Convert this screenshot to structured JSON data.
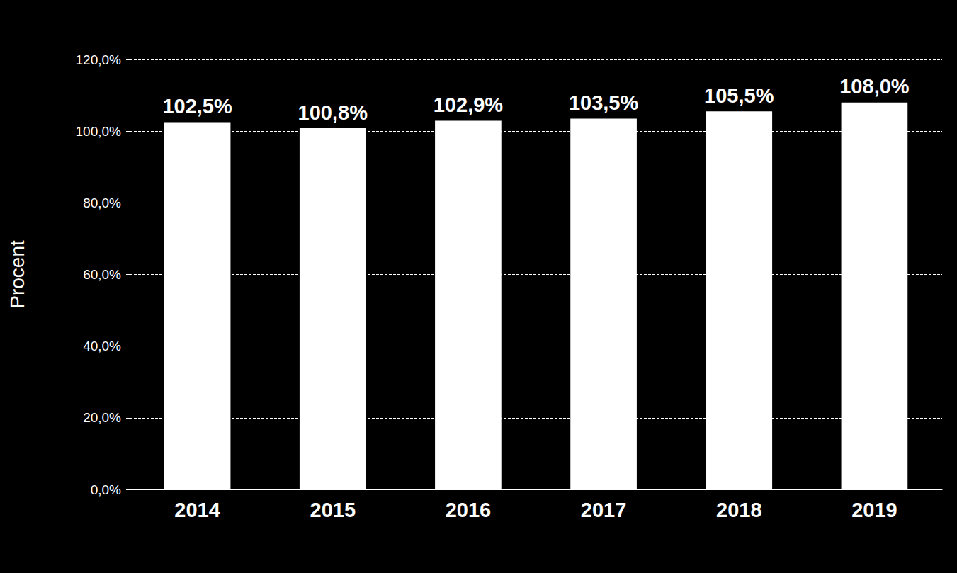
{
  "chart_data": {
    "type": "bar",
    "y_label": "Procent",
    "categories": [
      "2014",
      "2015",
      "2016",
      "2017",
      "2018",
      "2019"
    ],
    "values": [
      102.5,
      100.8,
      102.9,
      103.5,
      105.5,
      108.0
    ],
    "value_labels": [
      "102,5%",
      "100,8%",
      "102,9%",
      "103,5%",
      "105,5%",
      "108,0%"
    ],
    "color": "#ffffff",
    "ylim": [
      0,
      120
    ],
    "yticks": [
      {
        "value": 0,
        "label": "0,0%"
      },
      {
        "value": 20,
        "label": "20,0%"
      },
      {
        "value": 40,
        "label": "40,0%"
      },
      {
        "value": 60,
        "label": "60,0%"
      },
      {
        "value": 80,
        "label": "80,0%"
      },
      {
        "value": 100,
        "label": "100,0%"
      },
      {
        "value": 120,
        "label": "120,0%"
      }
    ],
    "grid": true,
    "data_labels": true
  }
}
